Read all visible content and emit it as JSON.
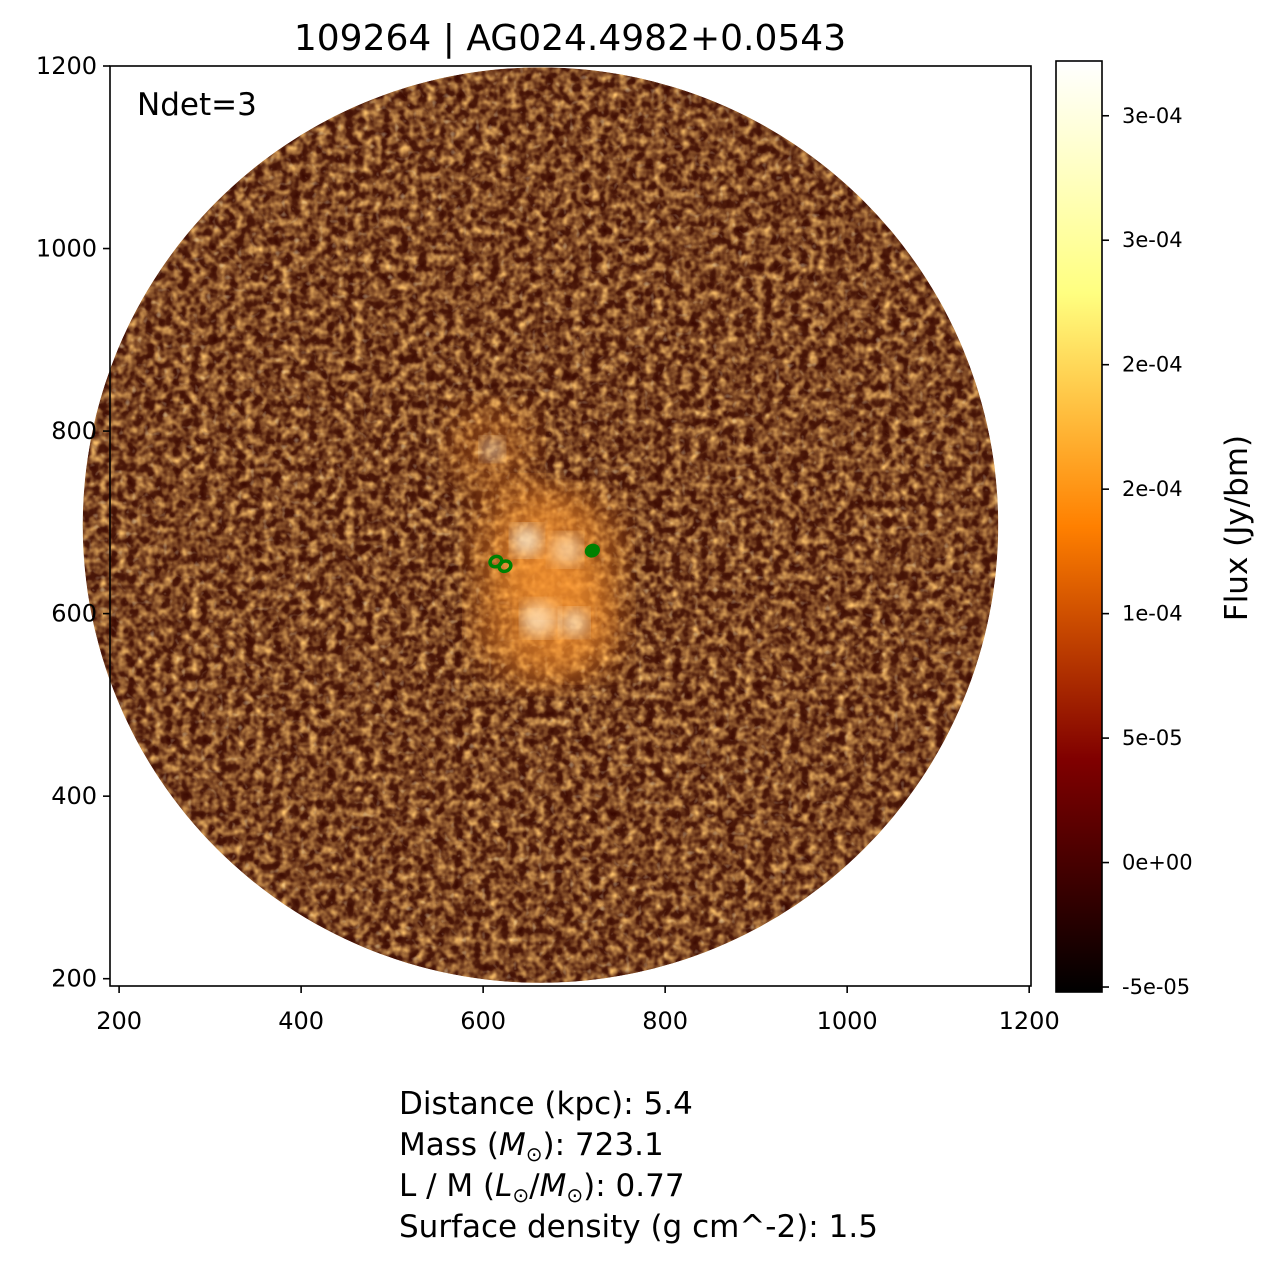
{
  "chart_data": {
    "type": "heatmap",
    "title": "109264 | AG024.4982+0.0543",
    "annotation": "Ndet=3",
    "xlim": [
      190,
      1202
    ],
    "ylim": [
      192,
      1200
    ],
    "x_ticks": [
      200,
      400,
      600,
      800,
      1000,
      1200
    ],
    "y_ticks": [
      200,
      400,
      600,
      800,
      1000,
      1200
    ],
    "image": {
      "shape": "circle",
      "center": [
        663,
        697
      ],
      "radius": 503,
      "colormap": "afmhot",
      "bright_regions": [
        {
          "x": 663,
          "y": 595,
          "level": 1.0
        },
        {
          "x": 690,
          "y": 670,
          "level": 0.85
        },
        {
          "x": 648,
          "y": 680,
          "level": 0.8
        },
        {
          "x": 700,
          "y": 590,
          "level": 0.7
        },
        {
          "x": 610,
          "y": 780,
          "level": 0.55
        }
      ]
    },
    "detections": [
      {
        "x": 614,
        "y": 657
      },
      {
        "x": 624,
        "y": 652
      },
      {
        "x": 720,
        "y": 669
      }
    ],
    "detection_color": "#008000",
    "colorbar": {
      "label": "Flux (Jy/bm)",
      "vmin": -5.2e-05,
      "vmax": 0.000322,
      "tick_values": [
        -5e-05,
        0,
        5e-05,
        0.0001,
        0.00015,
        0.0002,
        0.00025,
        0.0003
      ],
      "tick_labels": [
        "-5e-05",
        "0e+00",
        "5e-05",
        "1e-04",
        "2e-04",
        "2e-04",
        "3e-04",
        "3e-04"
      ]
    }
  },
  "info": {
    "distance_label": "Distance (kpc): ",
    "distance_value": "5.4",
    "mass_label": "Mass (",
    "mass_symbol": "M",
    "mass_suffix": "): ",
    "mass_value": "723.1",
    "lm_label": "L / M (",
    "lm_symbol_l": "L",
    "lm_slash": "/",
    "lm_symbol_m": "M",
    "lm_suffix": "): ",
    "lm_value": "0.77",
    "sun_symbol": "⊙",
    "sd_label": "Surface density (g cm^-2): ",
    "sd_value": "1.5"
  }
}
